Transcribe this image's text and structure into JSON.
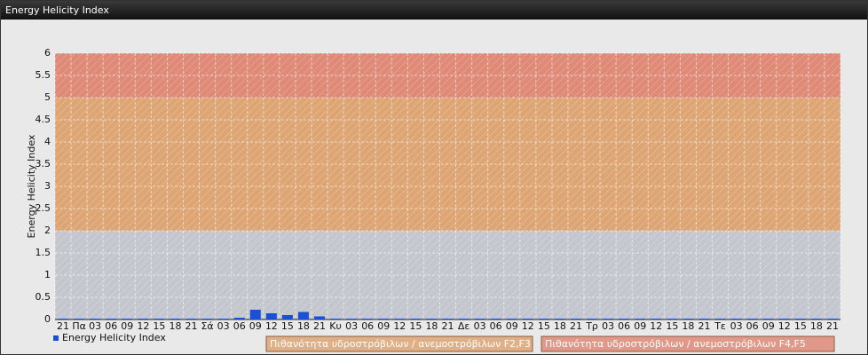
{
  "chart_data": {
    "type": "bar",
    "title": "Energy Helicity Index",
    "ylabel": "Energy Helicity Index",
    "categories": [
      "21",
      "Πα",
      "03",
      "06",
      "09",
      "12",
      "15",
      "18",
      "21",
      "Σά",
      "03",
      "06",
      "09",
      "12",
      "15",
      "18",
      "21",
      "Κυ",
      "03",
      "06",
      "09",
      "12",
      "15",
      "18",
      "21",
      "Δε",
      "03",
      "06",
      "09",
      "12",
      "15",
      "18",
      "21",
      "Τρ",
      "03",
      "06",
      "09",
      "12",
      "15",
      "18",
      "21",
      "Τε",
      "03",
      "06",
      "09",
      "12",
      "15",
      "18",
      "21"
    ],
    "series": [
      {
        "name": "Energy Helicity Index",
        "color": "#1a4fd6",
        "values": [
          0.02,
          0.02,
          0.02,
          0.02,
          0.02,
          0.02,
          0.02,
          0.02,
          0.02,
          0.02,
          0.02,
          0.04,
          0.22,
          0.14,
          0.1,
          0.17,
          0.07,
          0.02,
          0.02,
          0.02,
          0.02,
          0.02,
          0.02,
          0.02,
          0.02,
          0.02,
          0.02,
          0.02,
          0.02,
          0.02,
          0.02,
          0.02,
          0.02,
          0.02,
          0.02,
          0.02,
          0.02,
          0.02,
          0.02,
          0.02,
          0.02,
          0.02,
          0.02,
          0.02,
          0.02,
          0.02,
          0.02,
          0.02,
          0.02
        ]
      }
    ],
    "bands": [
      {
        "range": [
          0,
          2
        ],
        "color": "#c3c7cd"
      },
      {
        "range": [
          2,
          5
        ],
        "color": "#dea574",
        "name": "Πιθανότητα υδροστρόβιλων / ανεμοστρόβιλων F2,F3"
      },
      {
        "range": [
          5,
          6
        ],
        "color": "#df8977",
        "name": "Πιθανότητα υδροστρόβιλων / ανεμοστρόβιλων F4,F5"
      }
    ],
    "ylim": [
      0,
      6
    ],
    "yticks": [
      0,
      0.5,
      1,
      1.5,
      2,
      2.5,
      3,
      3.5,
      4,
      4.5,
      5,
      5.5,
      6
    ],
    "grid": true
  }
}
